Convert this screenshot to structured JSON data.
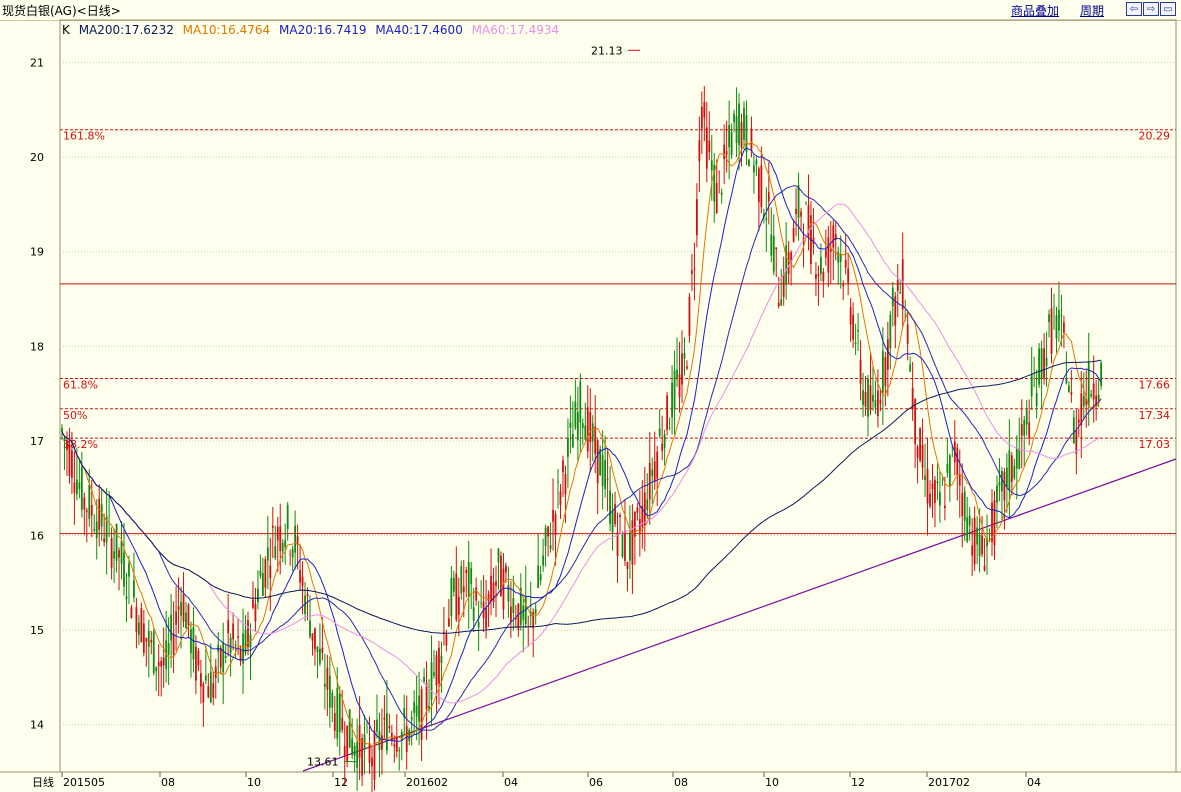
{
  "header": {
    "title": "现货白银(AG)<日线>",
    "overlay_label": "商品叠加",
    "period_label": "周期",
    "nav_buttons": [
      "⇦",
      "⇨",
      "▭"
    ]
  },
  "legend": {
    "prefix": "K",
    "items": [
      {
        "text": "MA200:17.6232",
        "color": "#0a1a5a"
      },
      {
        "text": "MA10:16.4764",
        "color": "#e07800"
      },
      {
        "text": "MA20:16.7419",
        "color": "#1a20c8"
      },
      {
        "text": "MA40:17.4600",
        "color": "#1a20c8"
      },
      {
        "text": "MA60:17.4934",
        "color": "#e890e8"
      }
    ]
  },
  "chart_data": {
    "type": "candlestick",
    "x_axis_title": "日线",
    "x_ticks": [
      "201505",
      "08",
      "10",
      "12",
      "201602",
      "04",
      "06",
      "08",
      "10",
      "12",
      "201702",
      "04"
    ],
    "y_ticks": [
      14,
      15,
      16,
      17,
      18,
      19,
      20,
      21
    ],
    "ylim": [
      13.5,
      21.45
    ],
    "annotations": {
      "high": {
        "label": "21.13",
        "value": 21.13
      },
      "low": {
        "label": "13.61",
        "value": 13.61
      }
    },
    "fib_levels": [
      {
        "label": "161.8%",
        "value": 20.29,
        "right_label": "20.29"
      },
      {
        "label": "61.8%",
        "value": 17.66,
        "right_label": "17.66"
      },
      {
        "label": "50%",
        "value": 17.34,
        "right_label": "17.34"
      },
      {
        "label": "38.2%",
        "value": 17.03,
        "right_label": "17.03"
      }
    ],
    "horizontal_lines": [
      18.66,
      16.02
    ],
    "trendline": {
      "from": {
        "x": "2015-11",
        "y": 13.45
      },
      "to": {
        "x": "2017-05",
        "y": 16.8
      }
    },
    "price_path": [
      [
        0.0,
        17.1
      ],
      [
        0.01,
        16.8
      ],
      [
        0.02,
        16.4
      ],
      [
        0.04,
        16.1
      ],
      [
        0.055,
        15.8
      ],
      [
        0.07,
        15.3
      ],
      [
        0.085,
        14.8
      ],
      [
        0.1,
        14.6
      ],
      [
        0.115,
        15.4
      ],
      [
        0.13,
        14.6
      ],
      [
        0.145,
        14.4
      ],
      [
        0.16,
        14.9
      ],
      [
        0.175,
        14.7
      ],
      [
        0.19,
        15.5
      ],
      [
        0.205,
        16.0
      ],
      [
        0.215,
        16.1
      ],
      [
        0.225,
        15.9
      ],
      [
        0.235,
        15.3
      ],
      [
        0.25,
        14.6
      ],
      [
        0.265,
        14.1
      ],
      [
        0.28,
        13.8
      ],
      [
        0.3,
        13.7
      ],
      [
        0.315,
        14.0
      ],
      [
        0.33,
        13.9
      ],
      [
        0.345,
        14.1
      ],
      [
        0.36,
        14.6
      ],
      [
        0.375,
        15.3
      ],
      [
        0.39,
        15.5
      ],
      [
        0.405,
        15.1
      ],
      [
        0.42,
        15.6
      ],
      [
        0.435,
        15.3
      ],
      [
        0.45,
        15.0
      ],
      [
        0.465,
        15.8
      ],
      [
        0.48,
        16.5
      ],
      [
        0.49,
        17.0
      ],
      [
        0.5,
        17.4
      ],
      [
        0.51,
        17.0
      ],
      [
        0.52,
        16.7
      ],
      [
        0.53,
        16.2
      ],
      [
        0.545,
        15.8
      ],
      [
        0.56,
        16.3
      ],
      [
        0.575,
        17.0
      ],
      [
        0.59,
        17.5
      ],
      [
        0.6,
        17.8
      ],
      [
        0.61,
        19.2
      ],
      [
        0.615,
        20.6
      ],
      [
        0.62,
        20.2
      ],
      [
        0.63,
        19.6
      ],
      [
        0.64,
        20.0
      ],
      [
        0.65,
        20.4
      ],
      [
        0.66,
        20.2
      ],
      [
        0.67,
        19.8
      ],
      [
        0.68,
        19.4
      ],
      [
        0.69,
        18.6
      ],
      [
        0.7,
        18.9
      ],
      [
        0.71,
        19.5
      ],
      [
        0.72,
        19.2
      ],
      [
        0.73,
        18.8
      ],
      [
        0.745,
        19.2
      ],
      [
        0.76,
        18.4
      ],
      [
        0.77,
        17.6
      ],
      [
        0.78,
        17.3
      ],
      [
        0.79,
        17.7
      ],
      [
        0.8,
        18.4
      ],
      [
        0.81,
        18.7
      ],
      [
        0.815,
        18.0
      ],
      [
        0.82,
        17.3
      ],
      [
        0.83,
        16.6
      ],
      [
        0.845,
        16.3
      ],
      [
        0.86,
        16.9
      ],
      [
        0.87,
        16.2
      ],
      [
        0.885,
        15.8
      ],
      [
        0.895,
        16.1
      ],
      [
        0.91,
        16.6
      ],
      [
        0.925,
        17.0
      ],
      [
        0.935,
        17.5
      ],
      [
        0.945,
        17.9
      ],
      [
        0.955,
        18.3
      ],
      [
        0.965,
        18.0
      ],
      [
        0.97,
        17.5
      ],
      [
        0.975,
        17.0
      ],
      [
        0.98,
        17.4
      ],
      [
        0.99,
        17.6
      ],
      [
        1.0,
        17.7
      ]
    ],
    "candle_tail": [
      [
        0.0,
        17.9
      ],
      [
        0.015,
        18.1
      ],
      [
        0.03,
        18.4
      ],
      [
        0.045,
        18.6
      ],
      [
        0.055,
        18.3
      ],
      [
        0.065,
        17.6
      ],
      [
        0.075,
        17.2
      ],
      [
        0.09,
        16.8
      ],
      [
        0.1,
        16.3
      ],
      [
        0.11,
        16.1
      ],
      [
        0.12,
        16.4
      ],
      [
        0.13,
        16.7
      ],
      [
        0.14,
        16.5
      ]
    ]
  }
}
